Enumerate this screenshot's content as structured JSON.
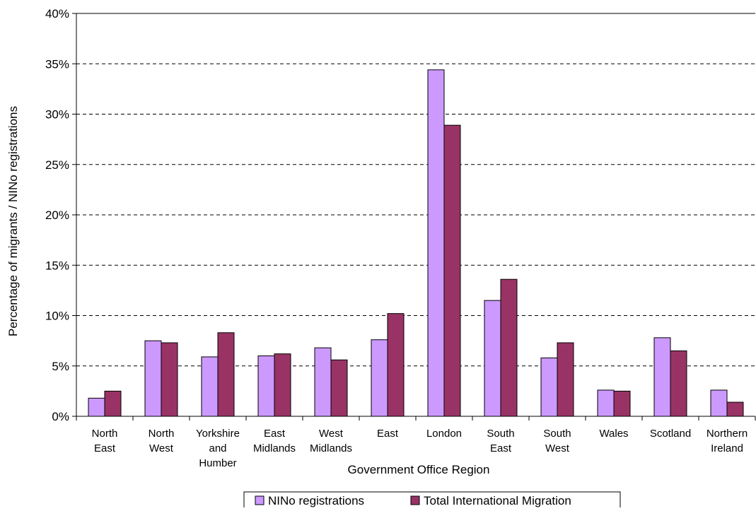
{
  "chart_data": {
    "type": "bar",
    "title": "",
    "xlabel": "Government Office Region",
    "ylabel": "Percentage of migrants / NINo registrations",
    "ylim": [
      0,
      40
    ],
    "yticks": [
      "0%",
      "5%",
      "10%",
      "15%",
      "20%",
      "25%",
      "30%",
      "35%",
      "40%"
    ],
    "tick_values": [
      0,
      5,
      10,
      15,
      20,
      25,
      30,
      35,
      40
    ],
    "grid": true,
    "legend_position": "bottom",
    "categories": [
      [
        "North",
        "East"
      ],
      [
        "North",
        "West"
      ],
      [
        "Yorkshire",
        "and",
        "Humber"
      ],
      [
        "East",
        "Midlands"
      ],
      [
        "West",
        "Midlands"
      ],
      [
        "East"
      ],
      [
        "London"
      ],
      [
        "South",
        "East"
      ],
      [
        "South",
        "West"
      ],
      [
        "Wales"
      ],
      [
        "Scotland"
      ],
      [
        "Northern",
        "Ireland"
      ]
    ],
    "series": [
      {
        "name": "NINo registrations",
        "color": "#cc99ff",
        "values": [
          1.8,
          7.5,
          5.9,
          6.0,
          6.8,
          7.6,
          34.4,
          11.5,
          5.8,
          2.6,
          7.8,
          2.6
        ]
      },
      {
        "name": "Total International Migration",
        "color": "#993366",
        "values": [
          2.5,
          7.3,
          8.3,
          6.2,
          5.6,
          10.2,
          28.9,
          13.6,
          7.3,
          2.5,
          6.5,
          1.4
        ]
      }
    ]
  }
}
